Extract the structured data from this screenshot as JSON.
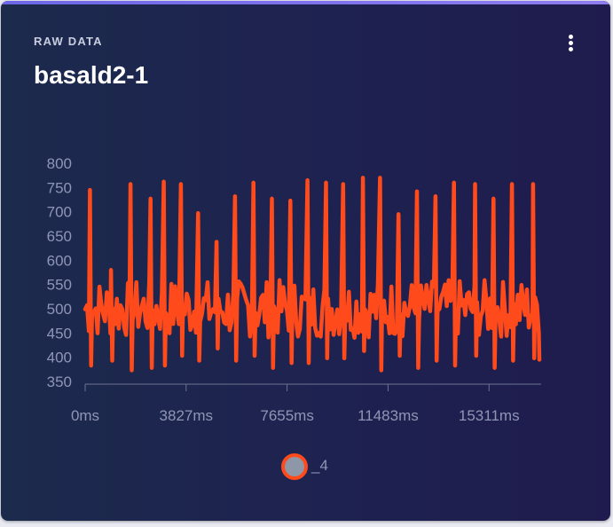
{
  "card": {
    "label": "RAW DATA",
    "title": "basald2-1"
  },
  "colors": {
    "series": "#ff4a1c",
    "legend_fill": "#8e97a8",
    "axis": "#6c7392",
    "card_bg": "#1e2250",
    "accent_bar": "#6d68e8"
  },
  "icons": {
    "menu": "vertical-ellipsis-icon"
  },
  "chart_data": {
    "type": "line",
    "title": "",
    "xlabel": "",
    "ylabel": "",
    "ylim": [
      350,
      800
    ],
    "yticks": [
      350,
      400,
      450,
      500,
      550,
      600,
      650,
      700,
      750,
      800
    ],
    "xticks": [
      0,
      3827,
      7655,
      11483,
      15311
    ],
    "xtick_labels": [
      "0ms",
      "3827ms",
      "7655ms",
      "11483ms",
      "15311ms"
    ],
    "x_range_ms": [
      0,
      17220
    ],
    "x_unit": "ms",
    "legend_position": "bottom-center",
    "series": [
      {
        "name": "_4",
        "peaks_ms": [
          200,
          1000,
          1740,
          2500,
          3000,
          3650,
          4300,
          5000,
          5700,
          6400,
          7100,
          7800,
          8450,
          9150,
          9800,
          10550,
          11200,
          11900,
          12600,
          13300,
          14000,
          14800,
          15500,
          16200,
          17000
        ],
        "peak_values": [
          745,
          580,
          757,
          727,
          762,
          757,
          697,
          638,
          732,
          760,
          727,
          723,
          765,
          760,
          757,
          770,
          770,
          695,
          742,
          732,
          760,
          757,
          727,
          757,
          757
        ],
        "dip_values": [
          383,
          393,
          373,
          378,
          383,
          403,
          393,
          418,
          393,
          403,
          378,
          388,
          388,
          398,
          398,
          413,
          373,
          403,
          378,
          393,
          383,
          403,
          378,
          393,
          398
        ],
        "baseline": 500,
        "noise_band": [
          440,
          560
        ]
      }
    ]
  }
}
